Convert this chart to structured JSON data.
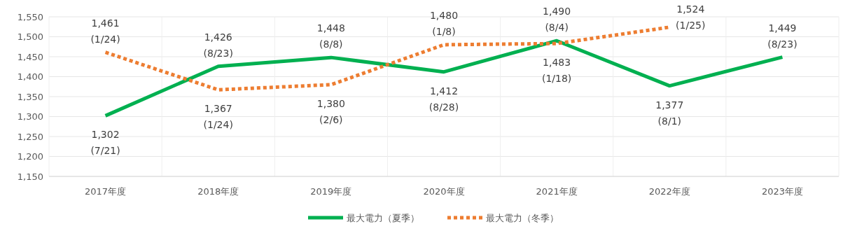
{
  "chart_data": {
    "type": "line",
    "categories": [
      "2017年度",
      "2018年度",
      "2019年度",
      "2020年度",
      "2021年度",
      "2022年度",
      "2023年度"
    ],
    "series": [
      {
        "name": "最大電力（夏季）",
        "color": "#00b050",
        "line_style": "solid",
        "values": [
          1302,
          1426,
          1448,
          1412,
          1490,
          1377,
          1449
        ],
        "value_labels": [
          "1,302 (7/21)",
          "1,426 (8/23)",
          "1,448 (8/8)",
          "1,412 (8/28)",
          "1,490 (8/4)",
          "1,377 (8/1)",
          "1,449 (8/23)"
        ]
      },
      {
        "name": "最大電力（冬季）",
        "color": "#ed7d31",
        "line_style": "dotted",
        "values": [
          1461,
          1367,
          1380,
          1480,
          1483,
          1524,
          null
        ],
        "value_labels": [
          "1,461 (1/24)",
          "1,367 (1/24)",
          "1,380 (2/6)",
          "1,480 (1/8)",
          "1,483 (1/18)",
          "1,524 (1/25)",
          null
        ]
      }
    ],
    "ylim": [
      1150,
      1550
    ],
    "yticks": [
      {
        "value": 1150,
        "label": "1,150"
      },
      {
        "value": 1200,
        "label": "1,200"
      },
      {
        "value": 1250,
        "label": "1,250"
      },
      {
        "value": 1300,
        "label": "1,300"
      },
      {
        "value": 1350,
        "label": "1,350"
      },
      {
        "value": 1400,
        "label": "1,400"
      },
      {
        "value": 1450,
        "label": "1,450"
      },
      {
        "value": 1500,
        "label": "1,500"
      },
      {
        "value": 1550,
        "label": "1,550"
      }
    ],
    "grid": true,
    "legend": "bottom",
    "marker": "none"
  }
}
